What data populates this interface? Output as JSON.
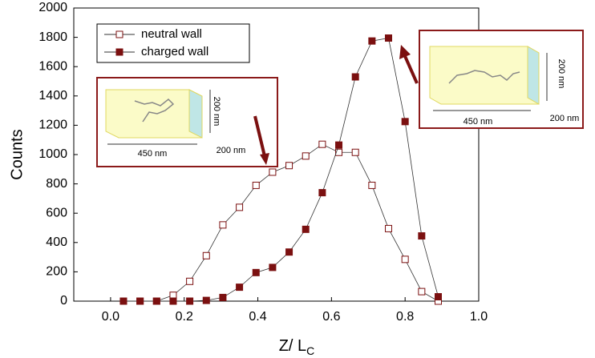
{
  "chart_data": {
    "type": "line",
    "x_label": "Z/ L",
    "x_label_subscript": "C",
    "y_label": "Counts",
    "x": [
      0.035,
      0.08,
      0.125,
      0.17,
      0.215,
      0.26,
      0.305,
      0.35,
      0.395,
      0.44,
      0.485,
      0.53,
      0.575,
      0.62,
      0.665,
      0.71,
      0.755,
      0.8,
      0.845,
      0.89
    ],
    "series": [
      {
        "name": "neutral wall",
        "color": "#7b1010",
        "marker": "open",
        "values": [
          0,
          0,
          0,
          40,
          135,
          310,
          520,
          640,
          790,
          880,
          925,
          990,
          1070,
          1015,
          1015,
          790,
          495,
          285,
          65,
          0
        ]
      },
      {
        "name": "charged wall",
        "color": "#7b1010",
        "marker": "filled",
        "values": [
          0,
          0,
          0,
          0,
          0,
          5,
          25,
          95,
          195,
          230,
          335,
          490,
          740,
          1065,
          1530,
          1775,
          1795,
          1225,
          445,
          30
        ]
      }
    ],
    "xlim": [
      -0.1,
      1.0
    ],
    "xticks": [
      {
        "value": 0,
        "label": "0.0"
      },
      0.2,
      0.4,
      0.6,
      0.8,
      {
        "value": 1,
        "label": "1.0"
      }
    ],
    "ylim": [
      0,
      2000
    ],
    "yticks": [
      0,
      200,
      400,
      600,
      800,
      1000,
      1200,
      1400,
      1600,
      1800,
      2000
    ],
    "legend": "upper-left",
    "insets": [
      {
        "height_label": "200 nm",
        "length_label": "450 nm",
        "depth_label": "200 nm"
      },
      {
        "height_label": "200 nm",
        "length_label": "450 nm",
        "depth_label": "200 nm"
      }
    ]
  }
}
